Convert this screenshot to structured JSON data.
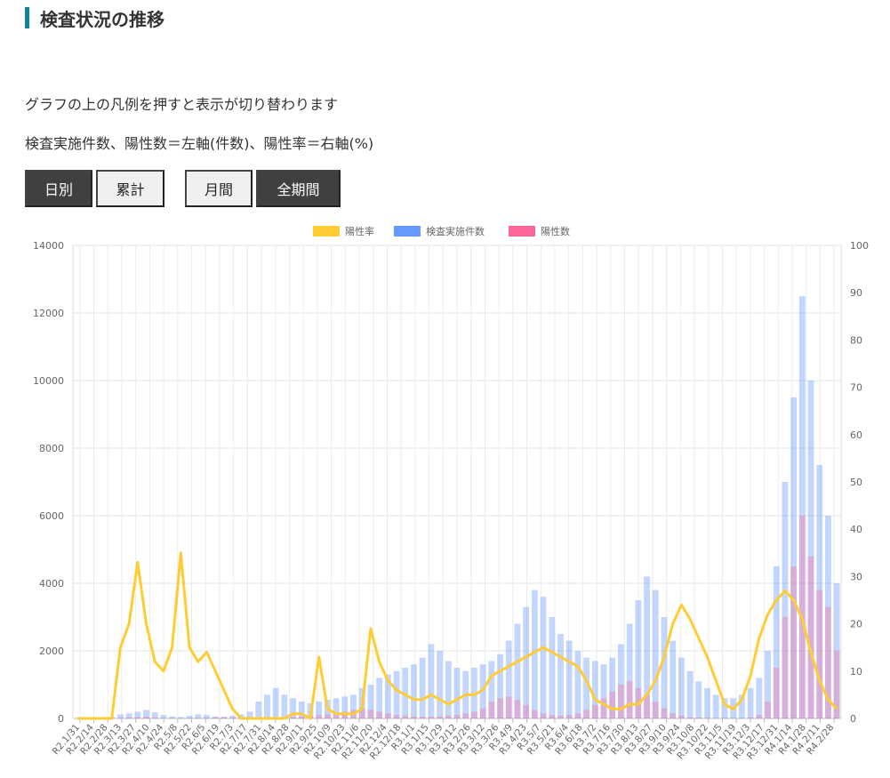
{
  "section": {
    "title": "検査状況の推移"
  },
  "description": {
    "line1": "グラフの上の凡例を押すと表示が切り替わります",
    "line2": "検査実施件数、陽性数＝左軸(件数)、陽性率＝右軸(%)"
  },
  "buttons": {
    "daily": "日別",
    "cumulative": "累計",
    "monthly": "月間",
    "all_period": "全期間"
  },
  "colors": {
    "rate": "#ffcc33",
    "tests": "#6699ff",
    "positives": "#ff6699",
    "title_accent": "#0b8794"
  },
  "chart_data": {
    "type": "bar",
    "legend_position": "top-center",
    "grid": true,
    "legend": [
      {
        "name": "陽性率",
        "color": "#ffcc33"
      },
      {
        "name": "検査実施件数",
        "color": "#6699ff"
      },
      {
        "name": "陽性数",
        "color": "#ff6699"
      }
    ],
    "y_left": {
      "min": 0,
      "max": 14000,
      "ticks": [
        "0",
        "2000",
        "4000",
        "6000",
        "8000",
        "10000",
        "12000",
        "14000"
      ]
    },
    "y_right": {
      "min": 0,
      "max": 100,
      "ticks": [
        "0",
        "10",
        "20",
        "30",
        "40",
        "50",
        "60",
        "70",
        "80",
        "90",
        "100"
      ]
    },
    "x_tick_labels": [
      "R2.1/31",
      "R2.2/14",
      "R2.2/28",
      "R2.3/13",
      "R2.3/27",
      "R2.4/10",
      "R2.4/24",
      "R2.5/8",
      "R2.5/22",
      "R2.6/5",
      "R2.6/19",
      "R2.7/3",
      "R2.7/17",
      "R2.7/31",
      "R2.8/14",
      "R2.8/28",
      "R2.9/11",
      "R2.9/25",
      "R2.10/9",
      "R2.10/23",
      "R2.11/6",
      "R2.11/20",
      "R2.12/4",
      "R2.12/18",
      "R3.1/1",
      "R3.1/15",
      "R3.1/29",
      "R3.2/12",
      "R3.2/26",
      "R3.3/12",
      "R3.3/26",
      "R3.4/9",
      "R3.4/23",
      "R3.5/7",
      "R3.5/21",
      "R3.6/4",
      "R3.6/18",
      "R3.7/2",
      "R3.7/16",
      "R3.7/30",
      "R3.8/13",
      "R3.8/27",
      "R3.9/10",
      "R3.9/24",
      "R3.10/8",
      "R3.10/22",
      "R3.11/5",
      "R3.11/19",
      "R3.12/3",
      "R3.12/17",
      "R3.12/31",
      "R4.1/14",
      "R4.1/28",
      "R4.2/11",
      "R4.2/28"
    ],
    "series": [
      {
        "name": "検査実施件数",
        "axis": "left",
        "kind": "bar",
        "values": [
          0,
          0,
          0,
          0,
          50,
          120,
          150,
          200,
          250,
          180,
          100,
          60,
          40,
          80,
          120,
          100,
          60,
          50,
          80,
          120,
          200,
          500,
          700,
          900,
          700,
          600,
          500,
          450,
          500,
          550,
          600,
          650,
          700,
          900,
          1000,
          1200,
          1300,
          1400,
          1500,
          1600,
          1800,
          2200,
          2000,
          1700,
          1500,
          1400,
          1500,
          1600,
          1700,
          1900,
          2300,
          2800,
          3300,
          3800,
          3600,
          3000,
          2500,
          2300,
          2000,
          1800,
          1700,
          1600,
          1800,
          2200,
          2800,
          3500,
          4200,
          3800,
          3000,
          2300,
          1800,
          1400,
          1100,
          900,
          700,
          600,
          600,
          700,
          900,
          1200,
          2000,
          4500,
          7000,
          9500,
          12500,
          10000,
          7500,
          6000,
          4000
        ]
      },
      {
        "name": "陽性数",
        "axis": "left",
        "kind": "bar",
        "values": [
          0,
          0,
          0,
          0,
          5,
          15,
          30,
          40,
          50,
          20,
          5,
          2,
          1,
          2,
          10,
          20,
          30,
          40,
          30,
          20,
          10,
          10,
          15,
          20,
          30,
          40,
          60,
          80,
          100,
          120,
          150,
          200,
          250,
          300,
          250,
          200,
          150,
          100,
          80,
          60,
          50,
          50,
          60,
          80,
          100,
          150,
          200,
          300,
          500,
          600,
          650,
          550,
          400,
          250,
          150,
          100,
          80,
          100,
          150,
          250,
          400,
          600,
          800,
          1000,
          1100,
          900,
          700,
          500,
          300,
          150,
          80,
          40,
          20,
          10,
          5,
          5,
          5,
          10,
          30,
          100,
          500,
          1500,
          3000,
          4500,
          6000,
          4800,
          3800,
          3300,
          2000
        ]
      },
      {
        "name": "陽性率",
        "axis": "right",
        "kind": "line",
        "values": [
          0,
          0,
          0,
          0,
          0,
          15,
          20,
          33,
          20,
          12,
          10,
          15,
          35,
          15,
          12,
          14,
          10,
          6,
          2,
          0,
          0,
          0,
          0,
          0,
          0,
          1,
          1,
          0,
          13,
          2,
          1,
          1,
          1,
          2,
          19,
          12,
          8,
          6,
          5,
          4,
          4,
          5,
          4,
          3,
          4,
          5,
          5,
          6,
          9,
          10,
          11,
          12,
          13,
          14,
          15,
          14,
          13,
          12,
          11,
          8,
          4,
          3,
          2,
          2,
          3,
          3,
          5,
          8,
          13,
          20,
          24,
          21,
          17,
          13,
          8,
          3,
          2,
          4,
          9,
          17,
          22,
          25,
          27,
          25,
          21,
          14,
          8,
          4,
          2
        ]
      }
    ]
  }
}
